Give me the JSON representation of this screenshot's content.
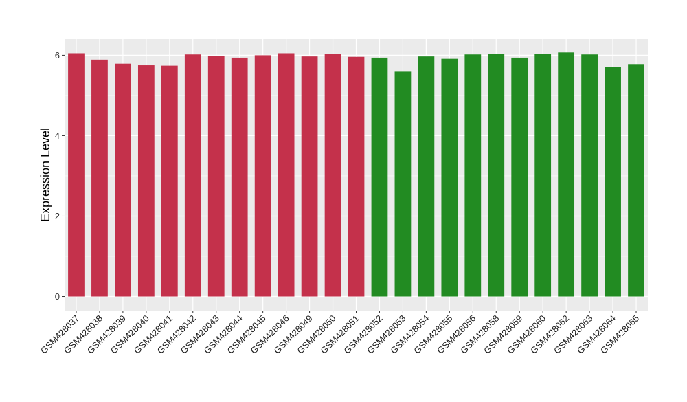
{
  "chart_data": {
    "type": "bar",
    "title": "",
    "xlabel": "",
    "ylabel": "Expression Level",
    "ylim": [
      -0.35,
      6.4
    ],
    "yticks": [
      0,
      2,
      4,
      6
    ],
    "grid": true,
    "legend": "none",
    "panel_background": "#ebebeb",
    "grid_color": "#ffffff",
    "categories": [
      "GSM428037",
      "GSM428038",
      "GSM428039",
      "GSM428040",
      "GSM428041",
      "GSM428042",
      "GSM428043",
      "GSM428044",
      "GSM428045",
      "GSM428046",
      "GSM428049",
      "GSM428050",
      "GSM428051",
      "GSM428052",
      "GSM428053",
      "GSM428054",
      "GSM428055",
      "GSM428056",
      "GSM428058",
      "GSM428059",
      "GSM428060",
      "GSM428062",
      "GSM428063",
      "GSM428064",
      "GSM428065"
    ],
    "values": [
      6.05,
      5.89,
      5.79,
      5.75,
      5.74,
      6.02,
      5.99,
      5.94,
      6.0,
      6.05,
      5.97,
      6.04,
      5.96,
      5.94,
      5.59,
      5.97,
      5.91,
      6.02,
      6.04,
      5.94,
      6.04,
      6.07,
      6.02,
      5.7,
      5.78
    ],
    "groups": [
      "a",
      "a",
      "a",
      "a",
      "a",
      "a",
      "a",
      "a",
      "a",
      "a",
      "a",
      "a",
      "a",
      "b",
      "b",
      "b",
      "b",
      "b",
      "b",
      "b",
      "b",
      "b",
      "b",
      "b",
      "b"
    ],
    "group_colors": {
      "a": "#c4314b",
      "b": "#228b22"
    }
  }
}
